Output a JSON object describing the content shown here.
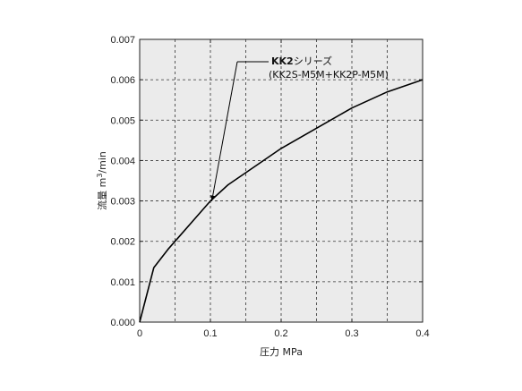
{
  "chart_data": {
    "type": "line",
    "xlabel": "圧力 MPa",
    "ylabel": "流量 m³/min",
    "ylabel_main": "流量 m",
    "ylabel_sup": "3",
    "ylabel_tail": "/min",
    "xlim": [
      0,
      0.4
    ],
    "ylim": [
      0,
      0.007
    ],
    "x_ticks": [
      "0",
      "0.1",
      "0.2",
      "0.3",
      "0.4"
    ],
    "y_ticks": [
      "0.000",
      "0.001",
      "0.002",
      "0.003",
      "0.004",
      "0.005",
      "0.006",
      "0.007"
    ],
    "x_gridlines": [
      0.05,
      0.1,
      0.15,
      0.2,
      0.25,
      0.3,
      0.35
    ],
    "y_gridlines": [
      0.001,
      0.002,
      0.003,
      0.004,
      0.005,
      0.006
    ],
    "grid": true,
    "series": [
      {
        "name": "KK2シリーズ",
        "x": [
          0,
          0.02,
          0.04,
          0.06,
          0.08,
          0.1,
          0.125,
          0.15,
          0.2,
          0.25,
          0.3,
          0.35,
          0.4
        ],
        "y": [
          0,
          0.00135,
          0.0018,
          0.0022,
          0.0026,
          0.003,
          0.0034,
          0.0037,
          0.0043,
          0.0048,
          0.0053,
          0.0057,
          0.006
        ]
      }
    ],
    "annotation": {
      "line1": "KK2シリーズ",
      "line1_bold": "KK2",
      "line1_rest": "シリーズ",
      "line2": "(KK2S-M5M+KK2P-M5M)",
      "point": [
        0.102,
        0.003
      ]
    },
    "colors": {
      "plot_background": "#ebebeb",
      "line": "#000000",
      "grid": "#333333"
    }
  }
}
